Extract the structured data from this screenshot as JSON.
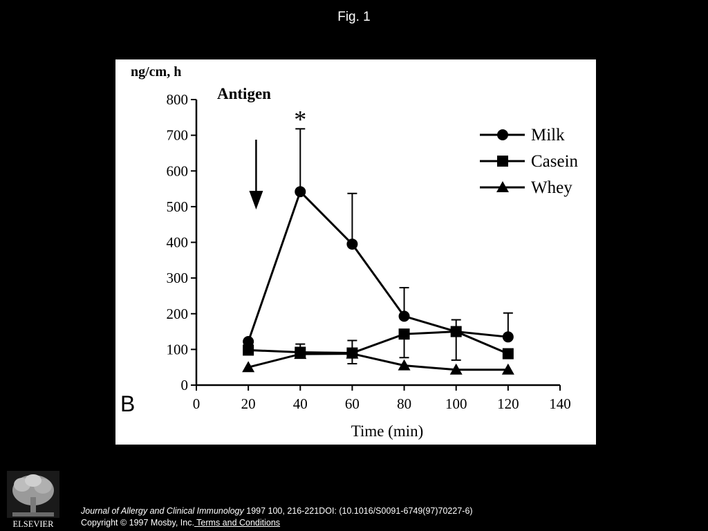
{
  "slide": {
    "title": "Fig. 1"
  },
  "chart_data": {
    "type": "line",
    "panel_label": "B",
    "y_unit_label": "ng/cm, h",
    "annotation_title": "Antigen",
    "significance_mark": "*",
    "xlabel": "Time (min)",
    "xlim": [
      0,
      140
    ],
    "ylim": [
      0,
      800
    ],
    "x_ticks": [
      0,
      20,
      40,
      60,
      80,
      100,
      120,
      140
    ],
    "y_ticks": [
      0,
      100,
      200,
      300,
      400,
      500,
      600,
      700,
      800
    ],
    "legend_position": "top-right",
    "arrow_at_x": 23,
    "series": [
      {
        "name": "Milk",
        "marker": "circle",
        "x": [
          20,
          40,
          60,
          80,
          100,
          120
        ],
        "y": [
          122,
          542,
          395,
          193,
          150,
          135
        ],
        "error_upper": [
          null,
          718,
          537,
          273,
          183,
          202
        ],
        "error_lower": [
          null,
          null,
          null,
          null,
          70,
          null
        ]
      },
      {
        "name": "Casein",
        "marker": "square",
        "x": [
          20,
          40,
          60,
          80,
          100,
          120
        ],
        "y": [
          98,
          92,
          90,
          143,
          150,
          88
        ],
        "error_upper": [
          null,
          115,
          125,
          null,
          null,
          null
        ],
        "error_lower": [
          null,
          null,
          null,
          77,
          null,
          null
        ]
      },
      {
        "name": "Whey",
        "marker": "triangle",
        "x": [
          20,
          40,
          60,
          80,
          100,
          120
        ],
        "y": [
          50,
          87,
          88,
          55,
          43,
          43
        ],
        "error_upper": [
          null,
          null,
          null,
          null,
          null,
          null
        ],
        "error_lower": [
          null,
          null,
          60,
          null,
          null,
          null
        ]
      }
    ]
  },
  "footer": {
    "logo_text": "ELSEVIER",
    "citation_journal": "Journal of Allergy and Clinical Immunology",
    "citation_rest": " 1997 100, 216-221DOI: (10.1016/S0091-6749(97)70227-6)",
    "copyright": "Copyright © 1997 Mosby, Inc.",
    "terms_link": " Terms and Conditions"
  }
}
